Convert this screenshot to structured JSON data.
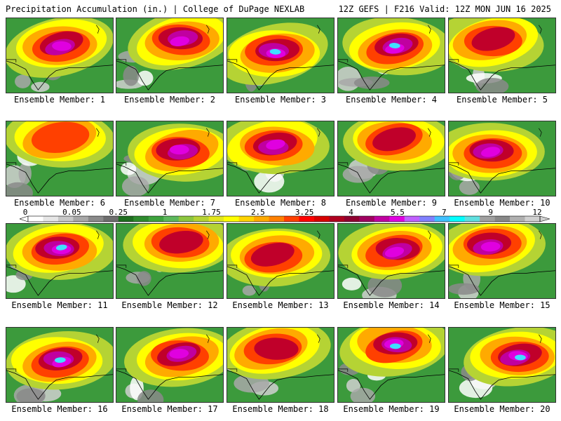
{
  "header": {
    "left": "Precipitation Accumulation (in.) | College of DuPage NEXLAB",
    "right": "12Z GEFS | F216 Valid: 12Z MON JUN 16 2025"
  },
  "colorbar": {
    "labels": [
      "0",
      "0.05",
      "0.25",
      "1",
      "1.75",
      "2.5",
      "3.25",
      "4",
      "5.5",
      "7",
      "9",
      "12"
    ],
    "colors": [
      "#ffffff",
      "#e6e6e6",
      "#c8c8c8",
      "#a8a8a8",
      "#8a8a8a",
      "#6e6e6e",
      "#1f6e1f",
      "#2e8b2e",
      "#3da33d",
      "#5cb85c",
      "#8cc63f",
      "#b5d334",
      "#e2e61e",
      "#ffff00",
      "#ffd400",
      "#ffaa00",
      "#ff8000",
      "#ff4000",
      "#ff0000",
      "#d80000",
      "#b00020",
      "#900030",
      "#a00060",
      "#c000a0",
      "#e000e0",
      "#c060ff",
      "#8080ff",
      "#40c0ff",
      "#00ffff",
      "#60e0e0",
      "#a0a0a0",
      "#888888",
      "#b0b0b0",
      "#d0d0d0"
    ]
  },
  "panels": [
    {
      "label": "Ensemble Member: 1",
      "intensity": 2
    },
    {
      "label": "Ensemble Member: 2",
      "intensity": 2
    },
    {
      "label": "Ensemble Member: 3",
      "intensity": 3
    },
    {
      "label": "Ensemble Member: 4",
      "intensity": 3
    },
    {
      "label": "Ensemble Member: 5",
      "intensity": 1
    },
    {
      "label": "Ensemble Member: 6",
      "intensity": 0
    },
    {
      "label": "Ensemble Member: 7",
      "intensity": 2
    },
    {
      "label": "Ensemble Member: 8",
      "intensity": 2
    },
    {
      "label": "Ensemble Member: 9",
      "intensity": 1
    },
    {
      "label": "Ensemble Member: 10",
      "intensity": 2
    },
    {
      "label": "Ensemble Member: 11",
      "intensity": 3
    },
    {
      "label": "Ensemble Member: 12",
      "intensity": 1
    },
    {
      "label": "Ensemble Member: 13",
      "intensity": 1
    },
    {
      "label": "Ensemble Member: 14",
      "intensity": 2
    },
    {
      "label": "Ensemble Member: 15",
      "intensity": 2
    },
    {
      "label": "Ensemble Member: 16",
      "intensity": 3
    },
    {
      "label": "Ensemble Member: 17",
      "intensity": 2
    },
    {
      "label": "Ensemble Member: 18",
      "intensity": 1
    },
    {
      "label": "Ensemble Member: 19",
      "intensity": 3
    },
    {
      "label": "Ensemble Member: 20",
      "intensity": 3
    }
  ]
}
